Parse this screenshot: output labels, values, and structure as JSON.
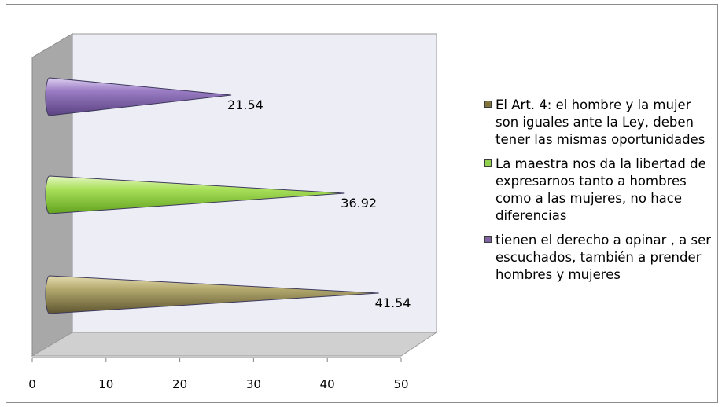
{
  "chart_data": {
    "type": "bar",
    "orientation": "horizontal",
    "style": "3d-cone",
    "series": [
      {
        "name": "El Art. 4: el hombre y la mujer son iguales ante la Ley, deben tener las mismas oportunidades",
        "value": 41.54,
        "color": "#7f7440"
      },
      {
        "name": "La maestra nos da la libertad de expresarnos tanto a hombres como a las mujeres, no hace diferencias",
        "value": 36.92,
        "color": "#92d050"
      },
      {
        "name": "tienen el derecho a opinar , a ser escuchados, también a prender hombres y mujeres",
        "value": 21.54,
        "color": "#8064a2"
      }
    ],
    "data_labels": [
      "41.54",
      "36.92",
      "21.54"
    ],
    "x_ticks": [
      "0",
      "10",
      "20",
      "30",
      "40",
      "50"
    ],
    "xlim": [
      0,
      50
    ],
    "legend_position": "right",
    "grid": false
  }
}
